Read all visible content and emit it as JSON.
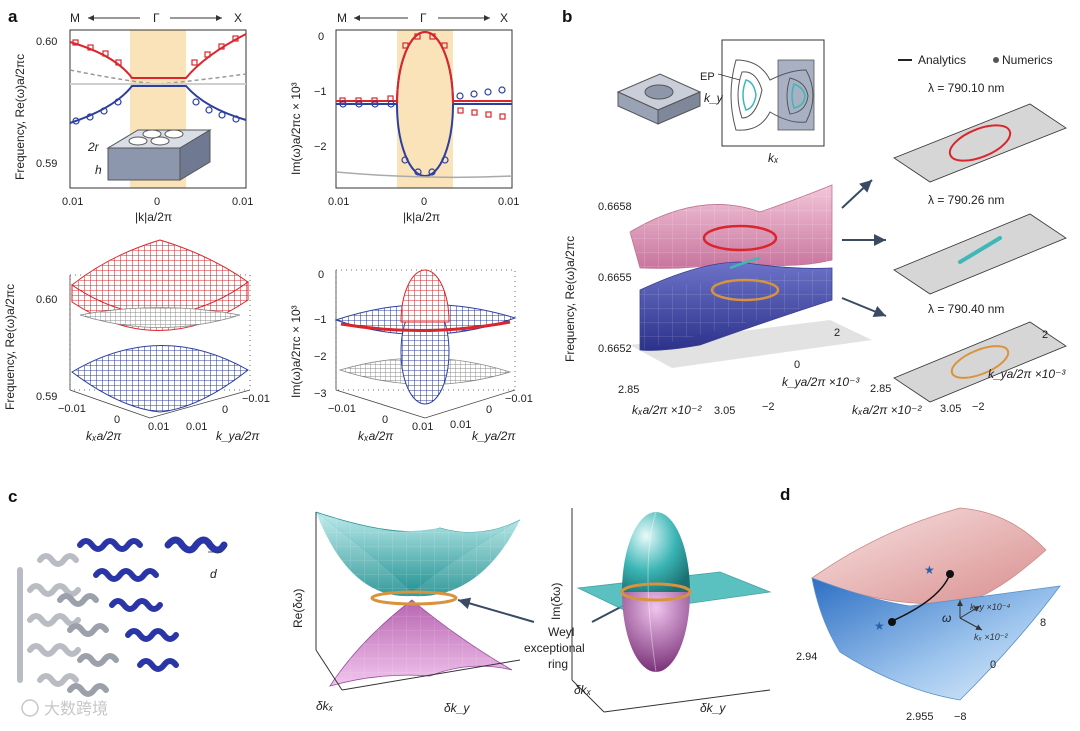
{
  "panels": {
    "a": {
      "label": "a",
      "top_left": {
        "dir_left": "M",
        "dir_mid": "Γ",
        "dir_right": "X",
        "ylabel": "Frequency, Re(ω)a/2πc",
        "xlabel": "|k|a/2π",
        "yticks": [
          "0.60",
          "0.59"
        ],
        "xticks": [
          "0.01",
          "0",
          "0.01"
        ],
        "inset_r": "2r",
        "inset_h": "h"
      },
      "top_right": {
        "dir_left": "M",
        "dir_mid": "Γ",
        "dir_right": "X",
        "ylabel": "Im(ω)a/2πc × 10³",
        "xlabel": "|k|a/2π",
        "yticks": [
          "0",
          "−1",
          "−2"
        ],
        "xticks": [
          "0.01",
          "0",
          "0.01"
        ]
      },
      "bottom_left": {
        "zlabel": "Frequency, Re(ω)a/2πc",
        "zticks": [
          "0.60",
          "0.59"
        ],
        "kx_label": "kₓa/2π",
        "ky_label": "k_ya/2π",
        "kx_ticks": [
          "−0.01",
          "0",
          "0.01"
        ],
        "ky_ticks": [
          "0.01",
          "0",
          "−0.01"
        ]
      },
      "bottom_right": {
        "zlabel": "Im(ω)a/2πc × 10³",
        "zticks": [
          "0",
          "−1",
          "−2",
          "−3"
        ],
        "kx_label": "kₓa/2π",
        "ky_label": "k_ya/2π",
        "kx_ticks": [
          "−0.01",
          "0",
          "0.01"
        ],
        "ky_ticks": [
          "0.01",
          "0",
          "−0.01"
        ]
      }
    },
    "b": {
      "label": "b",
      "ep_label": "EP",
      "ky": "k_y",
      "kx": "kₓ",
      "ylabel": "Frequency, Re(ω)a/2πc",
      "yticks": [
        "0.6658",
        "0.6655",
        "0.6652"
      ],
      "kx_axis": "kₓa/2π ×10⁻²",
      "ky_axis": "k_ya/2π ×10⁻³",
      "kx_ticks": [
        "2.85",
        "3.05"
      ],
      "ky_ticks": [
        "2",
        "0",
        "−2"
      ],
      "legend_analytics": "Analytics",
      "legend_numerics": "Numerics",
      "lambdas": [
        "λ = 790.10 nm",
        "λ = 790.26 nm",
        "λ = 790.40 nm"
      ],
      "small_kx_axis": "kₓa/2π ×10⁻²",
      "small_ky_axis": "k_ya/2π ×10⁻³",
      "small_kx_ticks": [
        "2.85",
        "3.05"
      ],
      "small_ky_ticks": [
        "2",
        "−2"
      ]
    },
    "c": {
      "label": "c",
      "d_label": "d",
      "re_axis": "Re(δω)",
      "im_axis": "Im(δω)",
      "dkx": "δkₓ",
      "dky": "δk_y",
      "callout_line1": "Weyl",
      "callout_line2": "exceptional",
      "callout_line3": "ring"
    },
    "d": {
      "label": "d",
      "omega": "ω",
      "ky_axis": "k_y ×10⁻⁴",
      "kx_axis": "kₓ ×10⁻²",
      "tick_294": "2.94",
      "tick_2955": "2.955",
      "tick_8": "8",
      "tick_0": "0",
      "tick_m8": "−8"
    }
  },
  "watermark": "大数跨境",
  "colors": {
    "red": "#d9262c",
    "blue": "#2c3f9f",
    "gray": "#9a9a9a",
    "orange_band": "#fbe3b9",
    "teal": "#3fb7b6",
    "ring": "#d8933c",
    "arrow": "#3a4a63"
  }
}
